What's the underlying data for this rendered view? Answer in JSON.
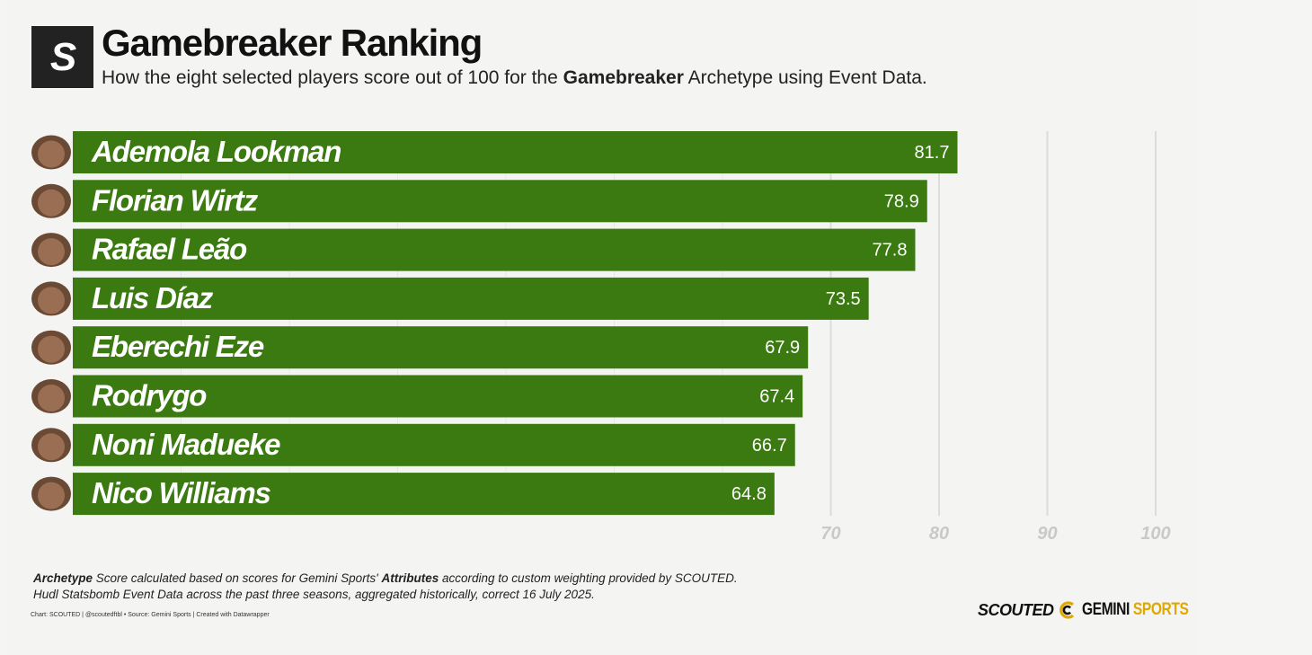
{
  "header": {
    "logo_letter": "S",
    "title": "Gamebreaker Ranking",
    "subtitle_pre": "How the eight selected players score out of 100 for the ",
    "subtitle_bold": "Gamebreaker",
    "subtitle_post": " Archetype using Event Data."
  },
  "chart_data": {
    "type": "bar",
    "orientation": "horizontal",
    "title": "Gamebreaker Ranking",
    "categories": [
      "Ademola Lookman",
      "Florian Wirtz",
      "Rafael Leão",
      "Luis Díaz",
      "Eberechi Eze",
      "Rodrygo",
      "Noni Madueke",
      "Nico Williams"
    ],
    "values": [
      81.7,
      78.9,
      77.8,
      73.5,
      67.9,
      67.4,
      66.7,
      64.8
    ],
    "value_labels": [
      "81.7",
      "78.9",
      "77.8",
      "73.5",
      "67.9",
      "67.4",
      "66.7",
      "64.8"
    ],
    "xlim": [
      0,
      100
    ],
    "tick_values": [
      70,
      80,
      90,
      100
    ],
    "tick_labels": [
      "70",
      "80",
      "90",
      "100"
    ],
    "grid": true,
    "bar_color": "#3a7a10",
    "label_color": "#ffffff",
    "grid_color": "#dcdcdc",
    "tick_color": "#c9c9c9"
  },
  "footer": {
    "note_line1_bold1": "Archetype",
    "note_line1_mid": " Score calculated based on scores for Gemini Sports' ",
    "note_line1_bold2": "Attributes",
    "note_line1_post": " according to custom weighting provided by SCOUTED.",
    "note_line2": "Hudl Statsbomb Event Data across the past three seasons, aggregated historically, correct 16 July 2025.",
    "credit": "Chart: SCOUTED | @scoutedftbl • Source: Gemini Sports | Created with Datawrapper",
    "brand_scouted": "SCOUTED",
    "brand_gemini": "GEMINI",
    "brand_sports": "SPORTS"
  }
}
